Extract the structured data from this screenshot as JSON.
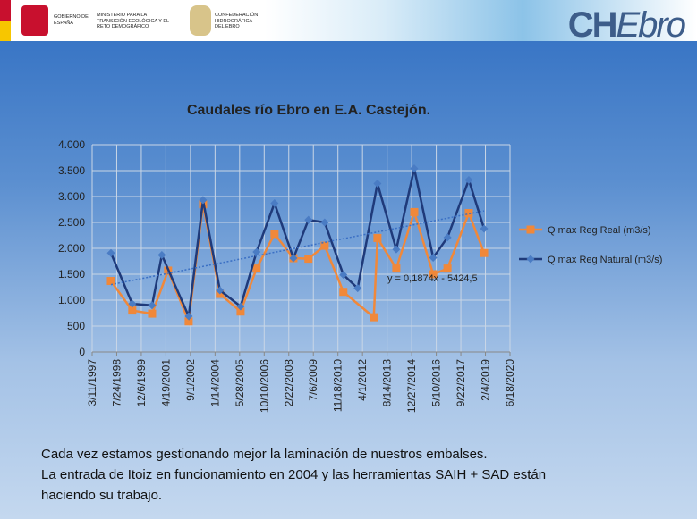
{
  "header": {
    "government": "GOBIERNO DE ESPAÑA",
    "ministry": "MINISTERIO PARA LA TRANSICIÓN ECOLÓGICA Y EL RETO DEMOGRÁFICO",
    "confederation": "CONFEDERACIÓN HIDROGRÁFICA DEL EBRO",
    "logo": [
      "CH",
      "Ebro"
    ]
  },
  "chart_data": {
    "type": "line",
    "title": "Caudales río Ebro en E.A. Castejón.",
    "xlim": [
      "3/11/1997",
      "6/18/2020"
    ],
    "xticks": [
      "3/11/1997",
      "7/24/1998",
      "12/6/1999",
      "4/19/2001",
      "9/1/2002",
      "1/14/2004",
      "5/28/2005",
      "10/10/2006",
      "2/22/2008",
      "7/6/2009",
      "11/18/2010",
      "4/1/2012",
      "8/14/2013",
      "12/27/2014",
      "5/10/2016",
      "9/22/2017",
      "2/4/2019",
      "6/18/2020"
    ],
    "ylim": [
      0,
      4000
    ],
    "yticks": [
      0,
      500,
      {
        "value": 1000,
        "label": "1.000"
      },
      {
        "value": 1500,
        "label": "1.500"
      },
      {
        "value": 2000,
        "label": "2.000"
      },
      {
        "value": 2500,
        "label": "2.500"
      },
      {
        "value": 3000,
        "label": "3.000"
      },
      {
        "value": 3500,
        "label": "3.500"
      },
      {
        "value": 4000,
        "label": "4.000"
      }
    ],
    "grid": true,
    "legend": "right",
    "series": [
      {
        "name": "Q max Reg Real (m3/s)",
        "color": "#f0883a",
        "marker": "square",
        "x": [
          "3/28/1998",
          "6/5/1999",
          "7/12/2000",
          "6/2/2001",
          "7/27/2002",
          "5/15/2003",
          "4/22/2004",
          "6/17/2005",
          "5/8/2006",
          "5/8/2007",
          "5/26/2008",
          "3/28/2009",
          "2/21/2010",
          "3/8/2011",
          "11/16/2012",
          "1/30/2013",
          "2/17/2014",
          "2/17/2015",
          "3/8/2016",
          "12/24/2016",
          "3/3/2018",
          "1/8/2019"
        ],
        "values": [
          1370,
          800,
          740,
          1570,
          590,
          2850,
          1120,
          780,
          1610,
          2280,
          1810,
          1800,
          2050,
          1160,
          670,
          2200,
          1610,
          2700,
          1500,
          1610,
          2680,
          1910
        ]
      },
      {
        "name": "Q max Reg Natural (m3/s)",
        "color": "#1f3a7a",
        "marker": "diamond",
        "marker_color": "#4a7cc4",
        "x": [
          "3/28/1998",
          "6/5/1999",
          "7/12/2000",
          "1/27/2001",
          "7/27/2002",
          "5/15/2003",
          "4/22/2004",
          "6/17/2005",
          "5/8/2006",
          "5/8/2007",
          "5/26/2008",
          "3/28/2009",
          "2/21/2010",
          "3/8/2011",
          "12/24/2011",
          "1/30/2013",
          "2/17/2014",
          "2/17/2015",
          "3/8/2016",
          "12/24/2016",
          "3/3/2018",
          "1/8/2019"
        ],
        "values": [
          1910,
          930,
          900,
          1870,
          690,
          2930,
          1190,
          880,
          1930,
          2870,
          1810,
          2550,
          2500,
          1490,
          1230,
          3250,
          1980,
          3540,
          1820,
          2210,
          3320,
          2380
        ],
        "trendline": {
          "slope": 0.1874,
          "intercept": -5424.5,
          "label": "y = 0,1874x - 5424,5",
          "color": "#3a6fc4"
        }
      }
    ]
  },
  "caption": [
    "Cada vez estamos gestionando mejor la laminación de nuestros embalses.",
    "La entrada de Itoiz en funcionamiento en 2004 y  las herramientas SAIH + SAD están",
    "haciendo su trabajo."
  ]
}
